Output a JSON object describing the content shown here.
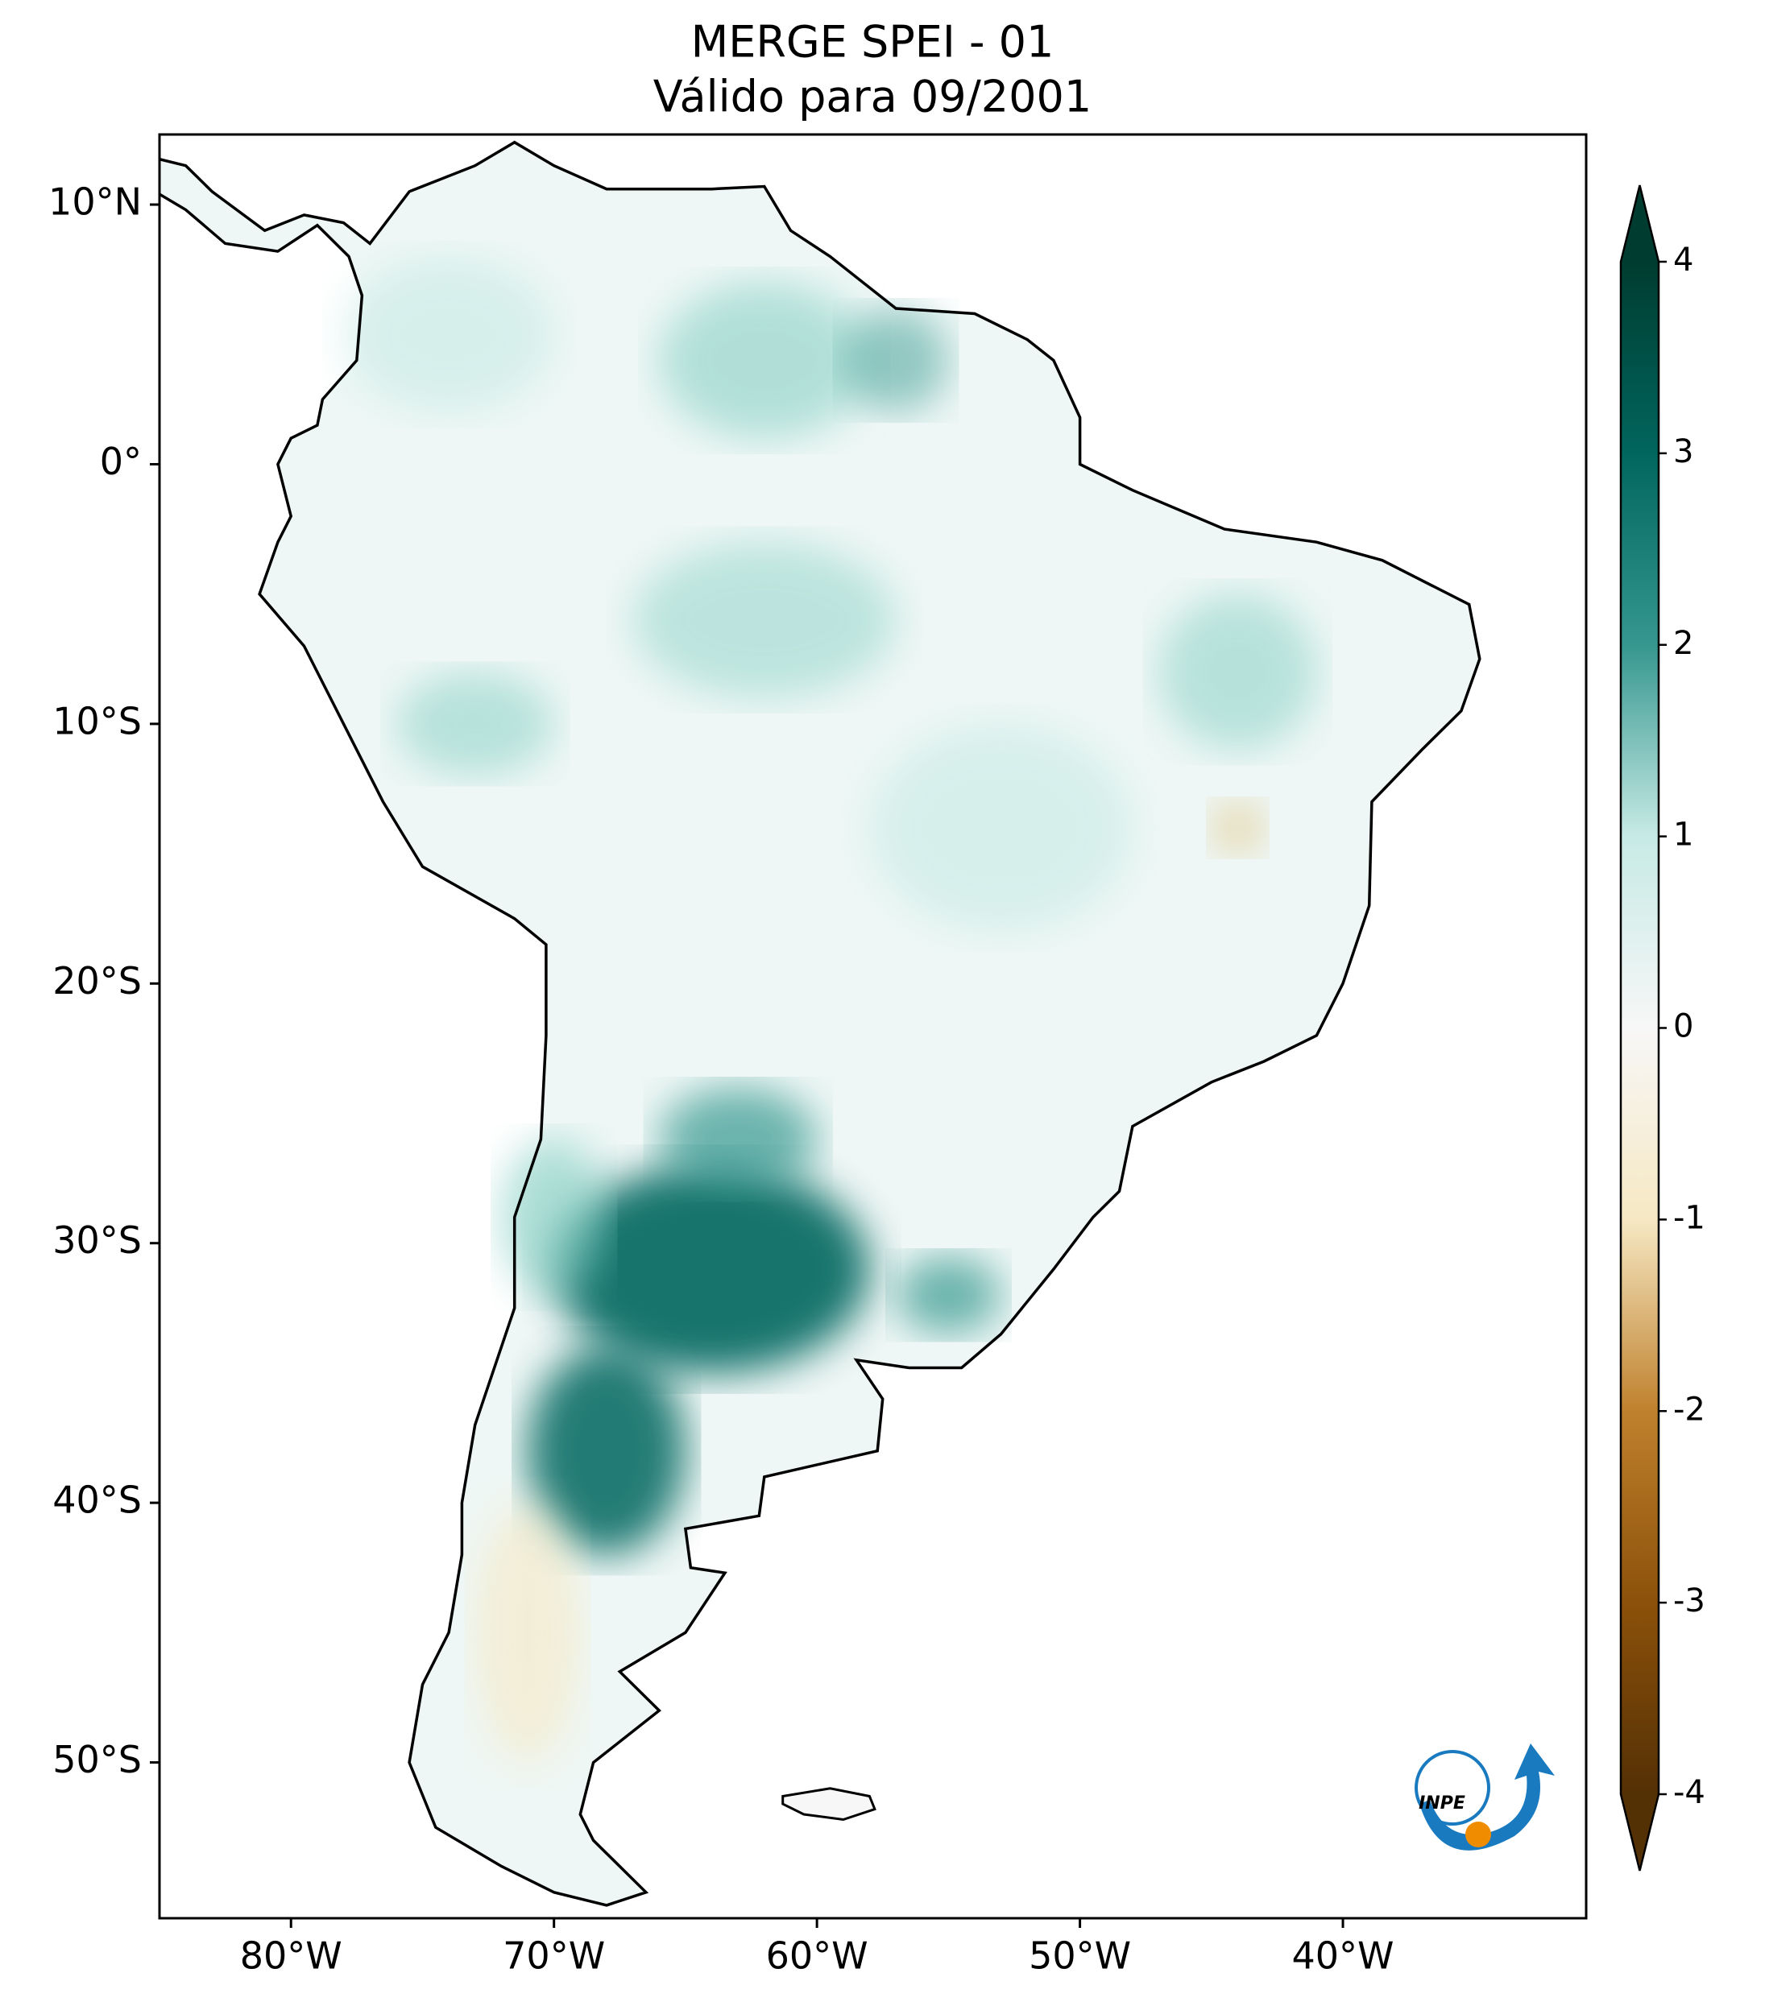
{
  "map": {
    "title": "MERGE   SPEI - 01",
    "subtitle": "Válido para 09/2001",
    "xlim": [
      -85,
      -30.75
    ],
    "ylim": [
      -56,
      12.7
    ],
    "xticks": [
      {
        "value": -80,
        "label": "80°W"
      },
      {
        "value": -70,
        "label": "70°W"
      },
      {
        "value": -60,
        "label": "60°W"
      },
      {
        "value": -50,
        "label": "50°W"
      },
      {
        "value": -40,
        "label": "40°W"
      }
    ],
    "yticks": [
      {
        "value": 10,
        "label": "10°N"
      },
      {
        "value": 0,
        "label": "0°"
      },
      {
        "value": -10,
        "label": "10°S"
      },
      {
        "value": -20,
        "label": "20°S"
      },
      {
        "value": -30,
        "label": "30°S"
      },
      {
        "value": -40,
        "label": "40°S"
      },
      {
        "value": -50,
        "label": "50°S"
      }
    ],
    "colorbar": {
      "lim": [
        -4,
        4
      ],
      "ticks": [
        4,
        3,
        2,
        1,
        0,
        -1,
        -2,
        -3,
        -4
      ]
    },
    "logo": "INPE"
  }
}
